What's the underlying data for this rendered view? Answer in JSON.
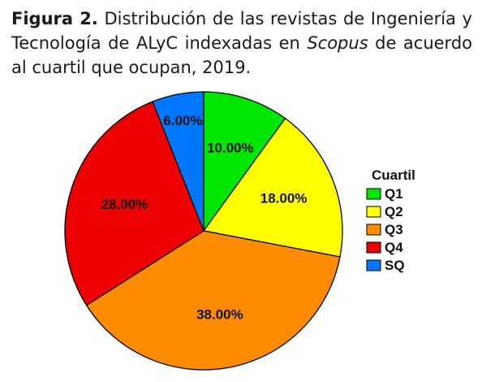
{
  "caption": {
    "label": "Figura 2.",
    "text_before": " Distribución de las revistas de Ingeniería y Tecnología de ALyC indexadas en ",
    "italic": "Scopus",
    "text_after": " de acuerdo al cuartil que ocupan, 2019."
  },
  "chart_data": {
    "type": "pie",
    "title": "",
    "legend_title": "Cuartil",
    "legend_position": "right",
    "slices": [
      {
        "name": "Q1",
        "value": 10.0,
        "label": "10.00%",
        "color": "#00e600"
      },
      {
        "name": "Q2",
        "value": 18.0,
        "label": "18.00%",
        "color": "#ffff00"
      },
      {
        "name": "Q3",
        "value": 38.0,
        "label": "38.00%",
        "color": "#ff8c00"
      },
      {
        "name": "Q4",
        "value": 28.0,
        "label": "28.00%",
        "color": "#ee0000"
      },
      {
        "name": "SQ",
        "value": 6.0,
        "label": "6.00%",
        "color": "#0077ff"
      }
    ]
  }
}
